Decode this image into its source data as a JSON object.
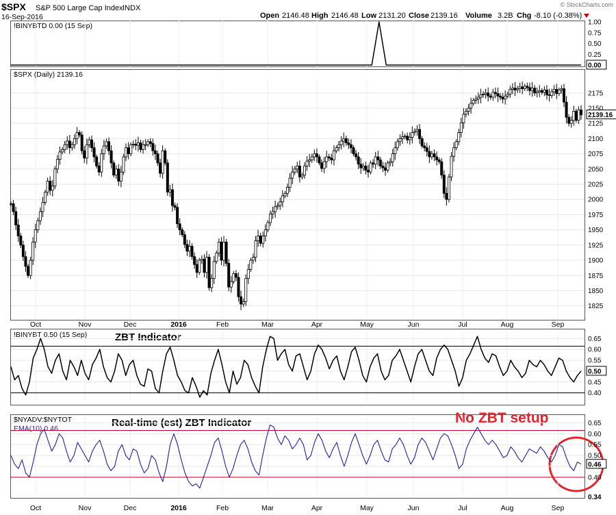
{
  "header": {
    "symbol": "$SPX",
    "name": "S&P 500 Large Cap Index",
    "exchange": "INDX",
    "date": "16-Sep-2016",
    "watermark": "© StockCharts.com",
    "quote": {
      "open_label": "Open",
      "open": "2146.48",
      "high_label": "High",
      "high": "2146.48",
      "low_label": "Low",
      "low": "2131.20",
      "close_label": "Close",
      "close": "2139.16",
      "volume_label": "Volume",
      "volume": "3.2B",
      "chg_label": "Chg",
      "chg": "-8.10 (-0.38%)"
    }
  },
  "colors": {
    "price": "#000000",
    "zbt": "#000000",
    "realtime": "#1f1f9e",
    "reference_black": "#000000",
    "reference_red": "#c0002a",
    "annotation": "#e8202a",
    "down_arrow": "#cc0000"
  },
  "x_axis": {
    "labels": [
      "Oct",
      "Nov",
      "Dec",
      "2016",
      "Feb",
      "Mar",
      "Apr",
      "May",
      "Jun",
      "Jul",
      "Aug",
      "Sep"
    ]
  },
  "annotations": {
    "zbt_title": "ZBT Indicator",
    "realtime_title": "Real-time (est) ZBT Indicator",
    "no_setup": "No ZBT setup",
    "circle_icon": "red-circle"
  },
  "chart_data": [
    {
      "id": "binybtd",
      "type": "line",
      "legend": "!BINYBTD 0.00 (15 Sep)",
      "yticks": [
        "1.00",
        "0.75",
        "0.50",
        "0.25",
        "0.00"
      ],
      "ylim": [
        0,
        1
      ],
      "last_label": "0.00",
      "values": [
        0,
        0,
        0,
        0,
        0,
        0,
        0,
        0,
        0,
        0,
        0,
        0,
        0,
        0,
        0,
        0,
        0,
        0,
        0,
        0,
        0,
        0,
        0,
        0,
        0,
        0,
        0,
        0,
        0,
        0,
        0,
        0,
        0,
        0,
        0,
        0,
        0,
        0,
        0,
        0,
        0,
        0,
        0,
        0,
        0,
        0,
        0,
        0,
        0,
        0,
        0,
        1,
        0,
        0,
        0,
        0,
        0,
        0,
        0,
        0,
        0,
        0,
        0,
        0,
        0,
        0,
        0,
        0,
        0,
        0,
        0,
        0,
        0,
        0,
        0,
        0,
        0,
        0,
        0,
        0
      ]
    },
    {
      "id": "spx",
      "type": "candlestick",
      "legend": "$SPX (Daily) 2139.16",
      "yticks": [
        "2175",
        "2150",
        "2125",
        "2100",
        "2075",
        "2050",
        "2025",
        "2000",
        "1975",
        "1950",
        "1925",
        "1900",
        "1875",
        "1850",
        "1825"
      ],
      "ylim": [
        1810,
        2195
      ],
      "last_label": "2139.16",
      "close": [
        1993,
        1980,
        1958,
        1940,
        1925,
        1906,
        1890,
        1875,
        1900,
        1930,
        1950,
        1965,
        1980,
        1995,
        2012,
        2030,
        2015,
        2022,
        2050,
        2066,
        2078,
        2082,
        2090,
        2096,
        2085,
        2090,
        2100,
        2110,
        2106,
        2080,
        2068,
        2090,
        2098,
        2085,
        2070,
        2055,
        2045,
        2075,
        2088,
        2095,
        2080,
        2060,
        2040,
        2050,
        2030,
        2045,
        2070,
        2085,
        2075,
        2090,
        2091,
        2089,
        2093,
        2082,
        2090,
        2090,
        2095,
        2092,
        2080,
        2075,
        2060,
        2043,
        2080,
        2060,
        2012,
        2016,
        1990,
        1987,
        1960,
        1950,
        1942,
        1926,
        1915,
        1923,
        1906,
        1893,
        1880,
        1900,
        1902,
        1880,
        1905,
        1855,
        1870,
        1898,
        1912,
        1930,
        1900,
        1930,
        1895,
        1856,
        1865,
        1878,
        1872,
        1840,
        1828,
        1832,
        1870,
        1885,
        1900,
        1905,
        1932,
        1940,
        1928,
        1940,
        1950,
        1962,
        1976,
        1980,
        1988,
        1990,
        1996,
        2006,
        2010,
        2020,
        2035,
        2045,
        2050,
        2055,
        2037,
        2040,
        2055,
        2063,
        2065,
        2070,
        2075,
        2070,
        2060,
        2051,
        2062,
        2070,
        2068,
        2065,
        2080,
        2085,
        2090,
        2096,
        2100,
        2093,
        2090,
        2085,
        2075,
        2070,
        2058,
        2052,
        2055,
        2048,
        2045,
        2060,
        2058,
        2070,
        2065,
        2055,
        2052,
        2048,
        2060,
        2062,
        2075,
        2085,
        2095,
        2100,
        2103,
        2104,
        2098,
        2102,
        2110,
        2112,
        2115,
        2100,
        2088,
        2085,
        2079,
        2070,
        2075,
        2070,
        2065,
        2062,
        2040,
        2010,
        2000,
        2037,
        2071,
        2085,
        2095,
        2110,
        2126,
        2140,
        2145,
        2150,
        2158,
        2163,
        2165,
        2168,
        2172,
        2173,
        2175,
        2170,
        2168,
        2176,
        2174,
        2170,
        2168,
        2165,
        2170,
        2173,
        2181,
        2183,
        2180,
        2182,
        2185,
        2182,
        2186,
        2184,
        2179,
        2183,
        2175,
        2177,
        2179,
        2176,
        2180,
        2172,
        2171,
        2177,
        2181,
        2174,
        2180,
        2182,
        2160,
        2135,
        2125,
        2130,
        2145,
        2130,
        2147,
        2139
      ]
    },
    {
      "id": "zbt",
      "type": "line",
      "legend": "!BINYBT 0.50 (15 Sep)",
      "yticks": [
        "0.65",
        "0.60",
        "0.55",
        "0.50",
        "0.45",
        "0.40"
      ],
      "ylim": [
        0.38,
        0.67
      ],
      "reference_lines": [
        0.615,
        0.4
      ],
      "last_label": "0.50",
      "values": [
        0.52,
        0.46,
        0.48,
        0.42,
        0.39,
        0.45,
        0.56,
        0.6,
        0.65,
        0.6,
        0.52,
        0.49,
        0.55,
        0.58,
        0.5,
        0.46,
        0.55,
        0.52,
        0.48,
        0.55,
        0.49,
        0.46,
        0.53,
        0.56,
        0.6,
        0.52,
        0.47,
        0.45,
        0.5,
        0.58,
        0.55,
        0.48,
        0.53,
        0.55,
        0.48,
        0.44,
        0.43,
        0.51,
        0.5,
        0.42,
        0.4,
        0.5,
        0.58,
        0.61,
        0.55,
        0.48,
        0.45,
        0.41,
        0.4,
        0.47,
        0.43,
        0.38,
        0.41,
        0.39,
        0.49,
        0.55,
        0.6,
        0.53,
        0.45,
        0.4,
        0.5,
        0.44,
        0.47,
        0.55,
        0.53,
        0.47,
        0.43,
        0.4,
        0.52,
        0.6,
        0.66,
        0.65,
        0.55,
        0.58,
        0.6,
        0.53,
        0.5,
        0.57,
        0.58,
        0.52,
        0.46,
        0.5,
        0.58,
        0.62,
        0.6,
        0.56,
        0.51,
        0.55,
        0.57,
        0.5,
        0.46,
        0.52,
        0.59,
        0.61,
        0.55,
        0.48,
        0.45,
        0.52,
        0.56,
        0.58,
        0.5,
        0.46,
        0.48,
        0.55,
        0.57,
        0.6,
        0.55,
        0.5,
        0.45,
        0.52,
        0.58,
        0.6,
        0.55,
        0.5,
        0.48,
        0.56,
        0.6,
        0.62,
        0.6,
        0.55,
        0.5,
        0.43,
        0.47,
        0.55,
        0.58,
        0.62,
        0.66,
        0.6,
        0.56,
        0.54,
        0.58,
        0.57,
        0.52,
        0.48,
        0.5,
        0.55,
        0.52,
        0.5,
        0.47,
        0.49,
        0.55,
        0.53,
        0.52,
        0.55,
        0.53,
        0.5,
        0.48,
        0.52,
        0.56,
        0.55,
        0.5,
        0.47,
        0.45,
        0.48,
        0.5
      ]
    },
    {
      "id": "realtime",
      "type": "line",
      "legend_top": "$NYADV:$NYTOT",
      "legend": "EMA(10) 0.46",
      "yticks": [
        "0.65",
        "0.60",
        "0.55",
        "0.50",
        "0.45",
        "0.40"
      ],
      "ylim": [
        0.34,
        0.67
      ],
      "reference_lines": [
        0.615,
        0.4
      ],
      "last_label": "0.46",
      "bottom_label": "0.34",
      "values": [
        0.5,
        0.46,
        0.44,
        0.48,
        0.42,
        0.4,
        0.47,
        0.55,
        0.6,
        0.62,
        0.57,
        0.52,
        0.55,
        0.6,
        0.58,
        0.52,
        0.47,
        0.5,
        0.56,
        0.53,
        0.5,
        0.47,
        0.52,
        0.55,
        0.57,
        0.52,
        0.46,
        0.43,
        0.45,
        0.52,
        0.55,
        0.5,
        0.48,
        0.53,
        0.52,
        0.46,
        0.42,
        0.44,
        0.5,
        0.48,
        0.42,
        0.38,
        0.45,
        0.55,
        0.6,
        0.55,
        0.48,
        0.42,
        0.38,
        0.36,
        0.37,
        0.35,
        0.4,
        0.45,
        0.5,
        0.56,
        0.58,
        0.52,
        0.45,
        0.4,
        0.44,
        0.5,
        0.55,
        0.57,
        0.53,
        0.47,
        0.43,
        0.41,
        0.5,
        0.58,
        0.64,
        0.63,
        0.58,
        0.55,
        0.59,
        0.57,
        0.53,
        0.55,
        0.58,
        0.55,
        0.48,
        0.5,
        0.56,
        0.6,
        0.57,
        0.52,
        0.49,
        0.53,
        0.56,
        0.5,
        0.45,
        0.5,
        0.56,
        0.6,
        0.55,
        0.5,
        0.46,
        0.5,
        0.55,
        0.57,
        0.52,
        0.48,
        0.47,
        0.53,
        0.55,
        0.58,
        0.55,
        0.5,
        0.46,
        0.49,
        0.55,
        0.58,
        0.56,
        0.52,
        0.48,
        0.53,
        0.58,
        0.6,
        0.59,
        0.55,
        0.5,
        0.44,
        0.46,
        0.53,
        0.57,
        0.6,
        0.63,
        0.6,
        0.57,
        0.55,
        0.57,
        0.55,
        0.52,
        0.49,
        0.5,
        0.54,
        0.52,
        0.49,
        0.47,
        0.5,
        0.53,
        0.52,
        0.51,
        0.54,
        0.52,
        0.49,
        0.47,
        0.5,
        0.55,
        0.54,
        0.49,
        0.45,
        0.43,
        0.47,
        0.46
      ]
    }
  ]
}
